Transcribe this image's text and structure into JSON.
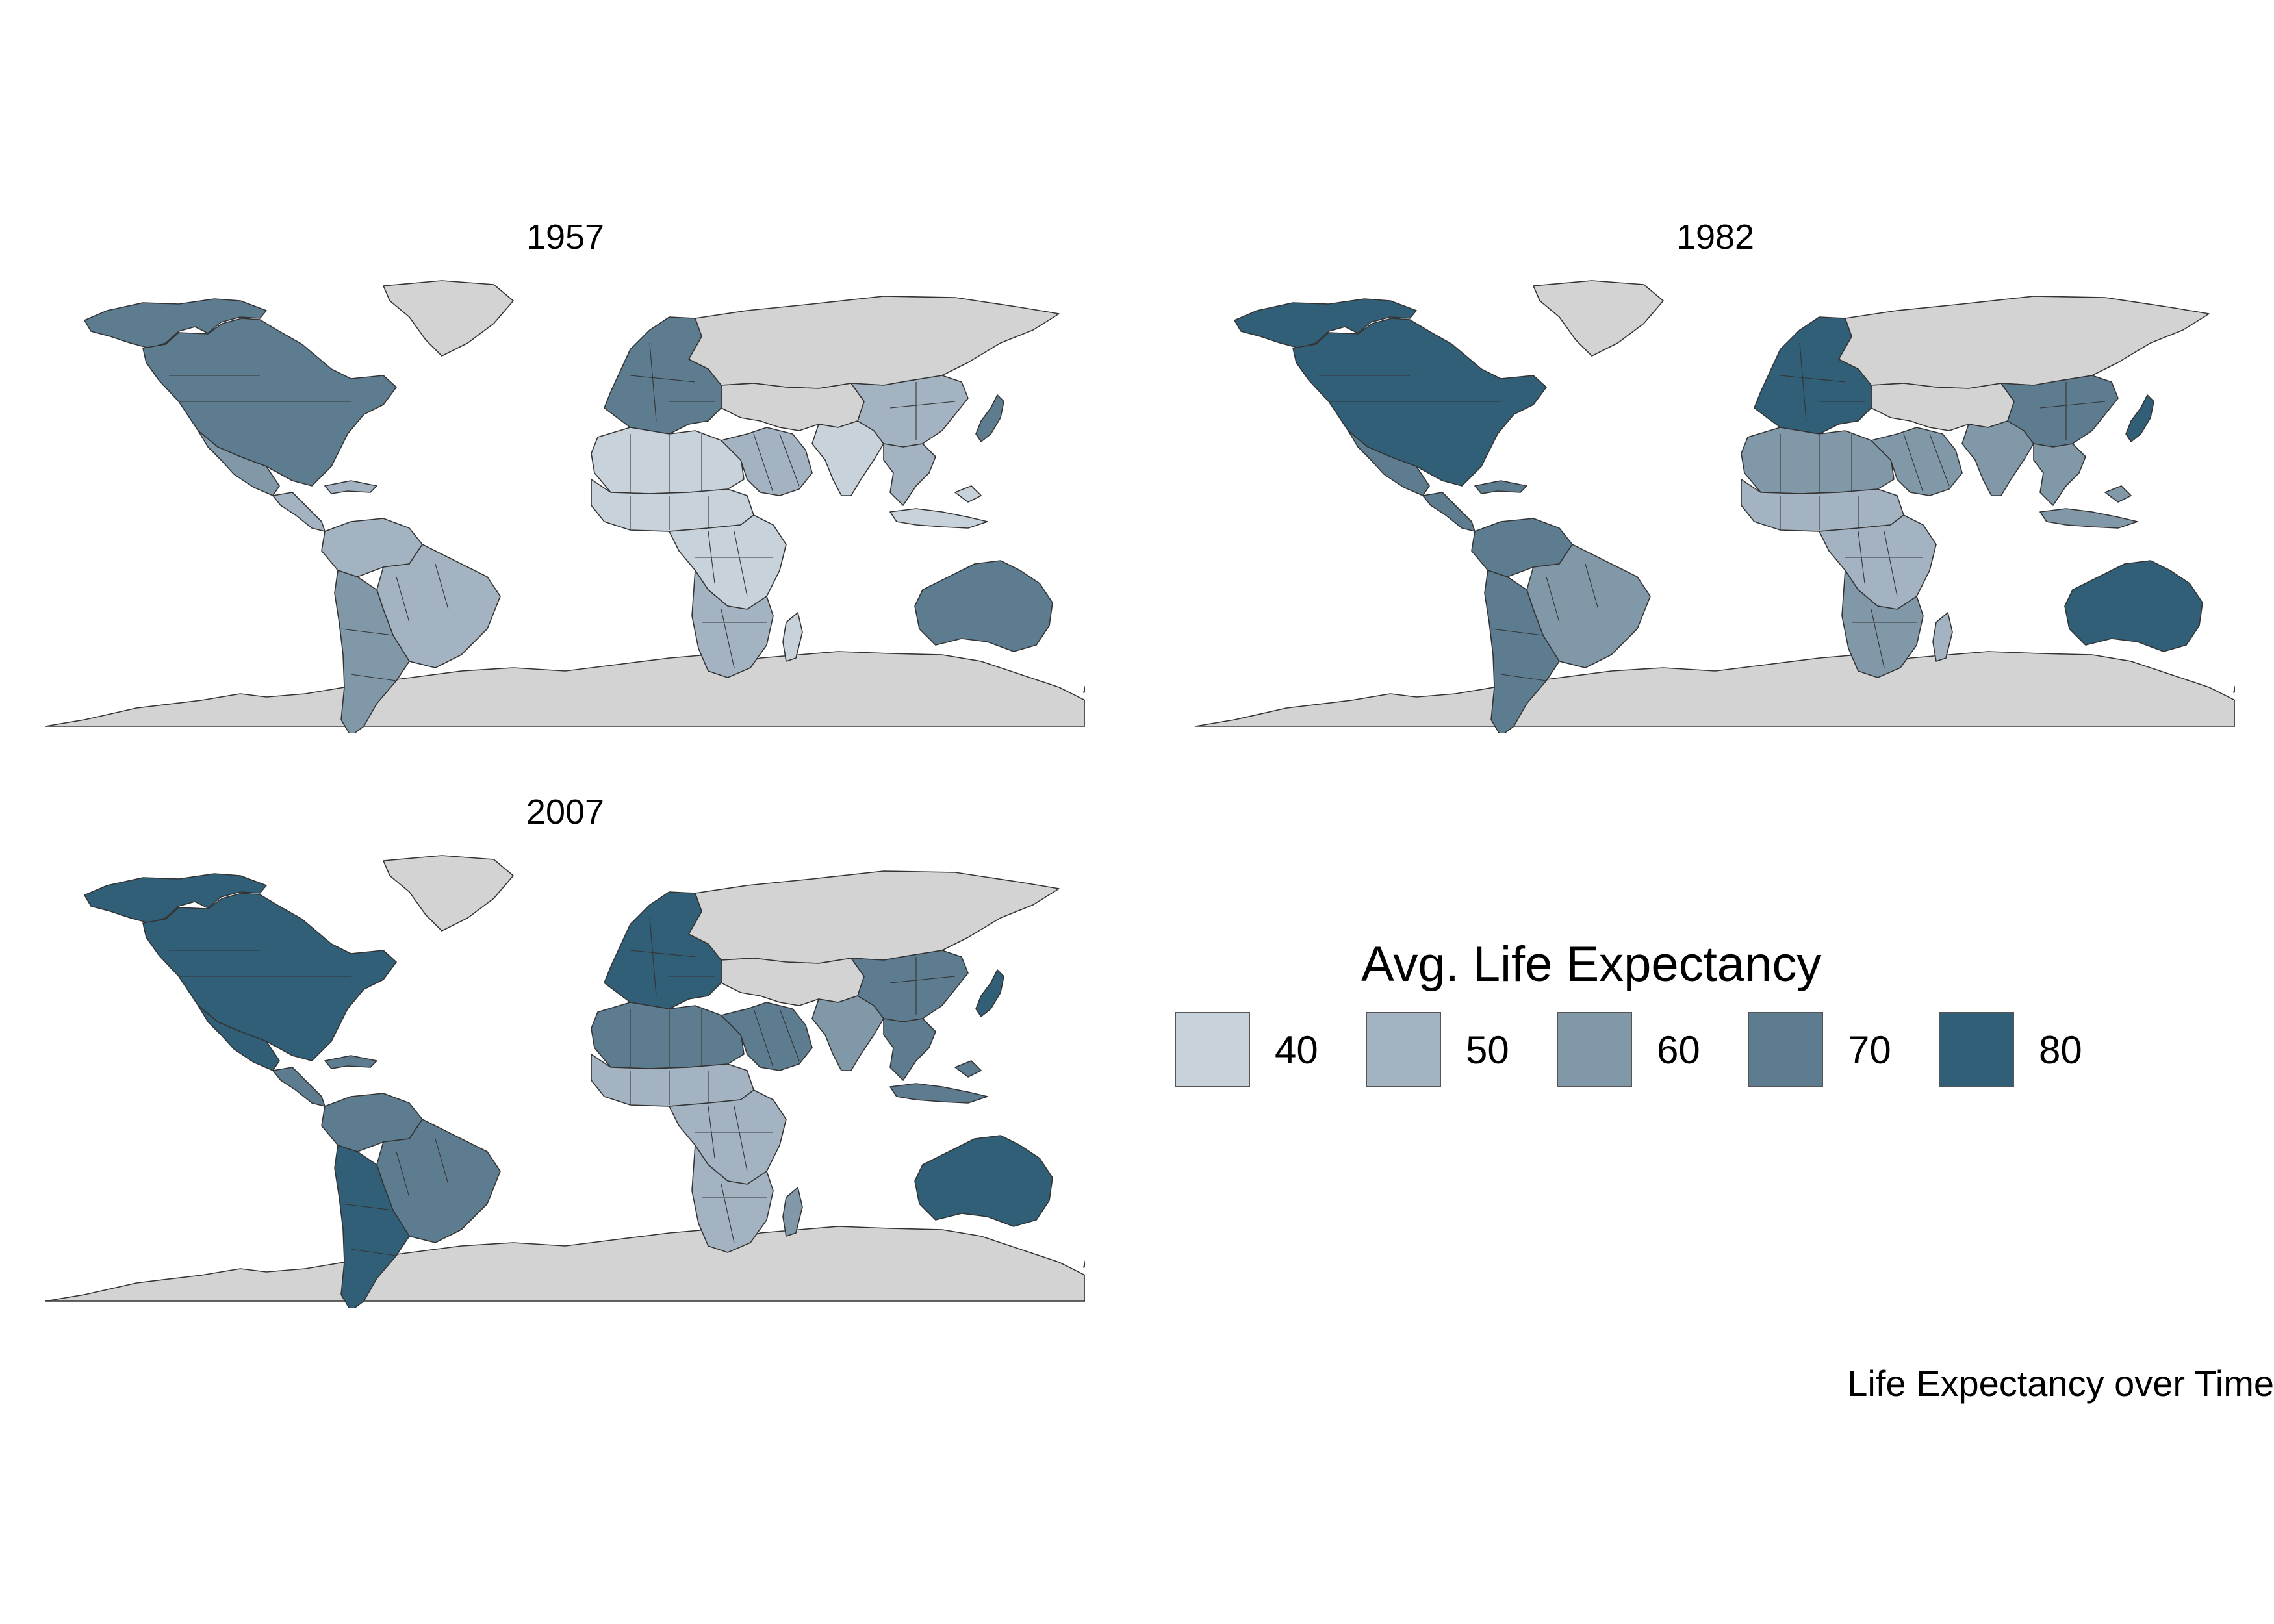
{
  "panels": [
    {
      "year": "1957",
      "regions": {
        "north_america": 70,
        "alaska_canada_north": 70,
        "greenland": null,
        "mexico": 60,
        "central_america": 50,
        "caribbean": 50,
        "south_america_north": 50,
        "brazil": 50,
        "south_america_south": 60,
        "europe": 70,
        "russia": null,
        "north_africa": 40,
        "sahel": 40,
        "central_africa": 40,
        "southern_africa": 50,
        "madagascar": 40,
        "middle_east": 50,
        "iran_central_asia": null,
        "india": 40,
        "china": 50,
        "southeast_asia": 50,
        "indonesia": 40,
        "japan": 70,
        "australia": 70,
        "new_zealand": 70,
        "antarctica": null
      }
    },
    {
      "year": "1982",
      "regions": {
        "north_america": 80,
        "alaska_canada_north": 80,
        "greenland": null,
        "mexico": 70,
        "central_america": 70,
        "caribbean": 70,
        "south_america_north": 70,
        "brazil": 60,
        "south_america_south": 70,
        "europe": 80,
        "russia": null,
        "north_africa": 60,
        "sahel": 50,
        "central_africa": 50,
        "southern_africa": 60,
        "madagascar": 50,
        "middle_east": 60,
        "iran_central_asia": null,
        "india": 60,
        "china": 70,
        "southeast_asia": 60,
        "indonesia": 60,
        "japan": 80,
        "australia": 80,
        "new_zealand": 80,
        "antarctica": null
      }
    },
    {
      "year": "2007",
      "regions": {
        "north_america": 80,
        "alaska_canada_north": 80,
        "greenland": null,
        "mexico": 80,
        "central_america": 70,
        "caribbean": 70,
        "south_america_north": 70,
        "brazil": 70,
        "south_america_south": 80,
        "europe": 80,
        "russia": null,
        "north_africa": 70,
        "sahel": 50,
        "central_africa": 50,
        "southern_africa": 50,
        "madagascar": 60,
        "middle_east": 70,
        "iran_central_asia": null,
        "india": 60,
        "china": 70,
        "southeast_asia": 70,
        "indonesia": 70,
        "japan": 80,
        "australia": 80,
        "new_zealand": 80,
        "antarctica": null
      }
    }
  ],
  "legend": {
    "title": "Avg. Life Expectancy",
    "breaks": [
      {
        "label": "40",
        "value": 40,
        "color": "#c8d2da"
      },
      {
        "label": "50",
        "value": 50,
        "color": "#a4b3c1"
      },
      {
        "label": "60",
        "value": 60,
        "color": "#8198a8"
      },
      {
        "label": "70",
        "value": 70,
        "color": "#5d7c90"
      },
      {
        "label": "80",
        "value": 80,
        "color": "#315f77"
      }
    ],
    "na_color": "#d3d3d3"
  },
  "caption": "Life Expectancy over Time"
}
